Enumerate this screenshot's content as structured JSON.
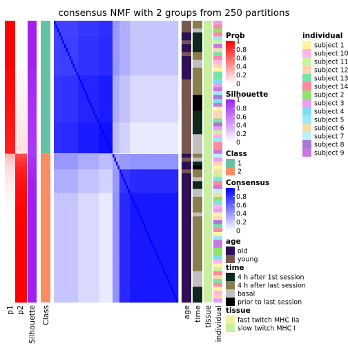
{
  "chart_data": {
    "type": "heatmap",
    "title": "consensus NMF with 2 groups from 250 partitions",
    "n_samples": 72,
    "class_sizes": [
      34,
      38
    ],
    "column_labels": [
      "p1",
      "p2",
      "Silhouette",
      "Class"
    ],
    "annotation_labels": [
      "age",
      "time",
      "tissue",
      "individual"
    ],
    "prob_p1_top": [
      1,
      1,
      1,
      1,
      1,
      1,
      1,
      1,
      1,
      1,
      1,
      1,
      0.98,
      0.98,
      0.97,
      0.97,
      0.96,
      0.96,
      0.95,
      0.95,
      0.94,
      0.94,
      0.93,
      0.93,
      0.92,
      0.92,
      0.91,
      0.91,
      0.9,
      0.9,
      0.89,
      0.89,
      0.88,
      0.88
    ],
    "prob_p1_bottom": [
      0.28,
      0.22,
      0.18,
      0.14,
      0.12,
      0.1,
      0.08,
      0.07,
      0.06,
      0.05,
      0.04,
      0.03,
      0.03,
      0.02,
      0.02,
      0.01,
      0.01,
      0.01,
      0,
      0,
      0,
      0,
      0,
      0,
      0,
      0,
      0,
      0,
      0,
      0,
      0,
      0,
      0,
      0,
      0,
      0,
      0,
      0
    ],
    "silhouette_top": [
      1,
      1,
      1,
      1,
      1,
      1,
      1,
      1,
      1,
      1,
      1,
      1,
      0.98,
      0.97,
      0.96,
      0.96,
      0.95,
      0.95,
      0.94,
      0.94,
      0.93,
      0.93,
      0.92,
      0.92,
      0.92,
      0.91,
      0.91,
      0.9,
      0.9,
      0.9,
      0.89,
      0.89,
      0.88,
      0.88
    ],
    "silhouette_bottom": [
      0.9,
      0.92,
      0.94,
      0.95,
      0.96,
      0.97,
      0.98,
      1,
      1,
      1,
      1,
      1,
      1,
      1,
      1,
      1,
      1,
      1,
      1,
      1,
      1,
      1,
      1,
      1,
      1,
      1,
      1,
      1,
      1,
      1,
      1,
      1,
      1,
      1,
      1,
      1,
      1,
      1
    ],
    "consensus_within_top": 0.97,
    "consensus_within_bottom": 0.95,
    "age": [
      "young",
      "young",
      "young",
      "old",
      "old",
      "young",
      "old",
      "old",
      "young",
      "old",
      "old",
      "old",
      "old",
      "old",
      "old",
      "young",
      "young",
      "young",
      "young",
      "young",
      "young",
      "young",
      "young",
      "young",
      "young",
      "young",
      "young",
      "young",
      "young",
      "young",
      "young",
      "young",
      "young",
      "young",
      "old",
      "young",
      "old",
      "old",
      "young",
      "old",
      "old",
      "old",
      "old",
      "old",
      "old",
      "old",
      "old",
      "old",
      "old",
      "old",
      "old",
      "old",
      "old",
      "old",
      "old",
      "old",
      "old",
      "old",
      "old",
      "old",
      "old",
      "old",
      "old",
      "old",
      "old",
      "old",
      "old",
      "old",
      "old",
      "old",
      "old",
      "old"
    ],
    "time": [
      "4 h after last session",
      "4 h after last session",
      "basal",
      "4 h after 1st session",
      "4 h after 1st session",
      "4 h after 1st session",
      "4 h after 1st session",
      "4 h after 1st session",
      "4 h after last session",
      "4 h after last session",
      "basal",
      "basal",
      "4 h after last session",
      "4 h after last session",
      "4 h after last session",
      "4 h after last session",
      "4 h after last session",
      "4 h after last session",
      "4 h after last session",
      "prior to last session",
      "prior to last session",
      "prior to last session",
      "prior to last session",
      "4 h after 1st session",
      "4 h after 1st session",
      "4 h after 1st session",
      "4 h after 1st session",
      "4 h after 1st session",
      "4 h after 1st session",
      "basal",
      "basal",
      "basal",
      "basal",
      "basal",
      "4 h after last session",
      "basal",
      "4 h after 1st session",
      "prior to last session",
      "4 h after last session",
      "4 h after last session",
      "basal",
      "4 h after 1st session",
      "4 h after 1st session",
      "basal",
      "basal",
      "4 h after last session",
      "4 h after last session",
      "4 h after last session",
      "4 h after last session",
      "basal",
      "4 h after last session",
      "4 h after last session",
      "4 h after last session",
      "4 h after last session",
      "4 h after last session",
      "4 h after last session",
      "4 h after last session",
      "4 h after last session",
      "4 h after last session",
      "4 h after last session",
      "4 h after last session",
      "4 h after last session",
      "4 h after last session",
      "4 h after last session",
      "basal",
      "basal",
      "basal",
      "basal",
      "4 h after 1st session",
      "4 h after 1st session",
      "4 h after 1st session",
      "4 h after 1st session"
    ],
    "individual": [
      "subject 3",
      "subject 14",
      "subject 2",
      "subject 14",
      "subject 5",
      "subject 11",
      "subject 9",
      "subject 6",
      "subject 13",
      "subject 14",
      "subject 10",
      "subject 12",
      "subject 1",
      "subject 13",
      "subject 13",
      "subject 4",
      "subject 3",
      "subject 9",
      "subject 5",
      "subject 8",
      "subject 4",
      "subject 9",
      "subject 1",
      "subject 12",
      "subject 12",
      "subject 13",
      "subject 8",
      "subject 3",
      "subject 11",
      "subject 10",
      "subject 5",
      "subject 14",
      "subject 14",
      "subject 9",
      "subject 7",
      "subject 3",
      "subject 12",
      "subject 1",
      "subject 6",
      "subject 11",
      "subject 4",
      "subject 14",
      "subject 9",
      "subject 7",
      "subject 6",
      "subject 2",
      "subject 4",
      "subject 10",
      "subject 3",
      "subject 1",
      "subject 12",
      "subject 8",
      "subject 13",
      "subject 14",
      "subject 1",
      "subject 5",
      "subject 9",
      "subject 9",
      "subject 2",
      "subject 2",
      "subject 4",
      "subject 10",
      "subject 1",
      "subject 11",
      "subject 14",
      "subject 6",
      "subject 13",
      "subject 14",
      "subject 1",
      "subject 10",
      "subject 12",
      "subject 3"
    ]
  },
  "legends": [
    {
      "title": "Prob",
      "type": "continuous",
      "ticks": [
        "1",
        "0.8",
        "0.6",
        "0.4",
        "0.2",
        "0"
      ]
    },
    {
      "title": "Silhouette",
      "type": "continuous",
      "ticks": [
        "1",
        "0.8",
        "0.6",
        "0.4",
        "0.2",
        "0"
      ]
    },
    {
      "title": "Class",
      "type": "discrete",
      "items": [
        "1",
        "2"
      ]
    },
    {
      "title": "Consensus",
      "type": "continuous",
      "ticks": [
        "1",
        "0.8",
        "0.6",
        "0.4",
        "0.2",
        "0"
      ]
    },
    {
      "title": "age",
      "type": "discrete",
      "items": [
        "old",
        "young"
      ]
    },
    {
      "title": "time",
      "type": "discrete",
      "items": [
        "4 h after 1st session",
        "4 h after last session",
        "basal",
        "prior to last session"
      ]
    },
    {
      "title": "tissue",
      "type": "discrete",
      "items": [
        "fast twitch MHC IIa",
        "slow twitch MHC I"
      ]
    },
    {
      "title": "individual",
      "type": "discrete",
      "items": [
        "subject 1",
        "subject 10",
        "subject 11",
        "subject 12",
        "subject 13",
        "subject 14",
        "subject 2",
        "subject 3",
        "subject 4",
        "subject 5",
        "subject 6",
        "subject 7",
        "subject 8",
        "subject 9"
      ]
    }
  ],
  "colors": {
    "prob_high": "#FF0000",
    "silhouette_high": "#A020F0",
    "consensus_high": "#0000FF",
    "class": {
      "1": "#66C2A5",
      "2": "#FC8D62"
    },
    "age": {
      "old": "#2D0F55",
      "young": "#785650"
    },
    "time": {
      "4 h after 1st session": "#0E2A1D",
      "4 h after last session": "#8A7D4E",
      "basal": "#C0C0C0",
      "prior to last session": "#000000"
    },
    "tissue": {
      "fast twitch MHC IIa": "#F0F0A0",
      "slow twitch MHC I": "#C8F0A0"
    },
    "individual": {
      "subject 1": "#FFF7A0",
      "subject 10": "#FFB3E6",
      "subject 11": "#C8F59A",
      "subject 12": "#FFD3B3",
      "subject 13": "#77E3A8",
      "subject 14": "#FF8AA0",
      "subject 2": "#8FE36B",
      "subject 3": "#E8A0F2",
      "subject 4": "#7DE0F0",
      "subject 5": "#9AE7F7",
      "subject 6": "#F2DFA8",
      "subject 7": "#BFEFF5",
      "subject 8": "#A878D8",
      "subject 9": "#C878E0"
    }
  }
}
